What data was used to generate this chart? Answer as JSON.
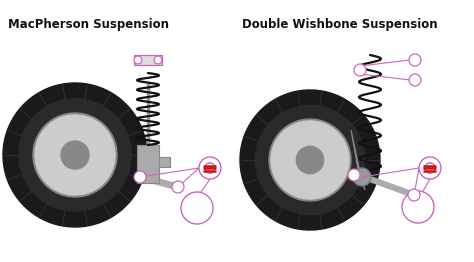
{
  "title_left": "MacPherson Suspension",
  "title_right": "Double Wishbone Suspension",
  "title_fontsize": 8.5,
  "title_fontweight": "bold",
  "bg_color": "#ffffff",
  "pink": "#cc66bb",
  "spring_color": "#111111",
  "gray_strut": "#aaaaaa",
  "gray_arm": "#999999",
  "gray_knuckle": "#bbbbbb",
  "pivot_gray": "#999999"
}
